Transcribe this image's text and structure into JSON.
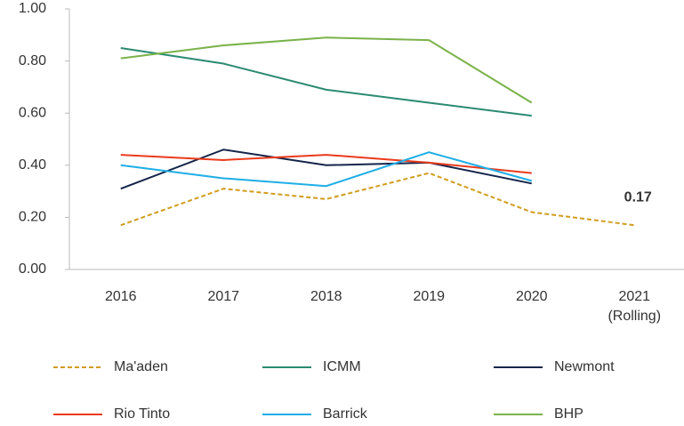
{
  "chart_data": {
    "type": "line",
    "categories": [
      "2016",
      "2017",
      "2018",
      "2019",
      "2020",
      "2021\n(Rolling)"
    ],
    "series": [
      {
        "name": "Ma'aden",
        "color": "#d19c1d",
        "dashed": true,
        "values": [
          0.17,
          0.31,
          0.27,
          0.37,
          0.22,
          0.17
        ]
      },
      {
        "name": "ICMM",
        "color": "#2b8a72",
        "values": [
          0.85,
          0.79,
          0.69,
          0.64,
          0.59,
          null
        ]
      },
      {
        "name": "Newmont",
        "color": "#14254a",
        "values": [
          0.31,
          0.46,
          0.4,
          0.41,
          0.33,
          null
        ]
      },
      {
        "name": "Rio Tinto",
        "color": "#ea3a1c",
        "values": [
          0.44,
          0.42,
          0.44,
          0.41,
          0.37,
          null
        ]
      },
      {
        "name": "Barrick",
        "color": "#1eaee6",
        "values": [
          0.4,
          0.35,
          0.32,
          0.45,
          0.34,
          null
        ]
      },
      {
        "name": "BHP",
        "color": "#7ab24a",
        "values": [
          0.81,
          0.86,
          0.89,
          0.88,
          0.64,
          null
        ]
      }
    ],
    "ylim": [
      0,
      1
    ],
    "yticks": [
      {
        "value": 0,
        "label": "0.00"
      },
      {
        "value": 0.2,
        "label": "0.20"
      },
      {
        "value": 0.4,
        "label": "0.40"
      },
      {
        "value": 0.6,
        "label": "0.60"
      },
      {
        "value": 0.8,
        "label": "0.80"
      },
      {
        "value": 1,
        "label": "1.00"
      }
    ],
    "grid": false,
    "legend": "bottom",
    "annotations": [
      {
        "text": "0.17",
        "series": 0,
        "index": 5
      }
    ]
  }
}
